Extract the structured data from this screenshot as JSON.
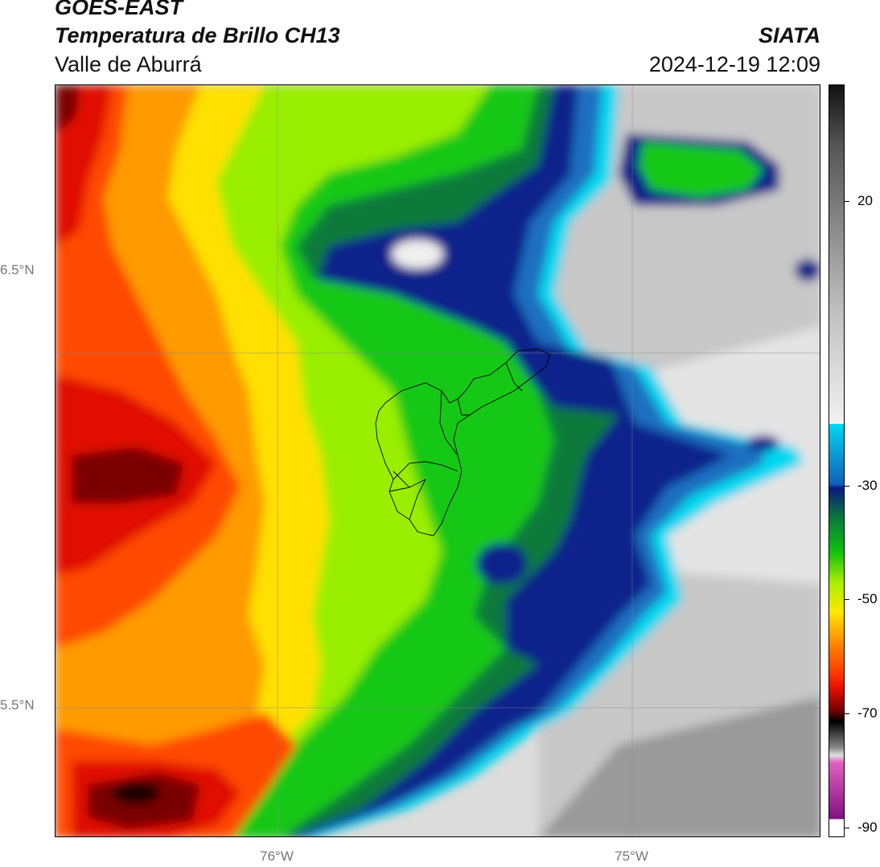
{
  "header": {
    "satellite": "GOES-EAST",
    "product": "Temperatura de Brillo CH13",
    "region": "Valle de Aburrá",
    "agency": "SIATA",
    "datetime": "2024-12-19 12:09"
  },
  "axes": {
    "lat_labels": [
      "6.5°N",
      "5.5°N"
    ],
    "lon_labels": [
      "76°W",
      "75°W"
    ]
  },
  "colorbar": {
    "ticks": [
      "20",
      "-30",
      "-50",
      "-70",
      "-90"
    ],
    "colors": {
      "warm_max": "#111111",
      "gray_light": "#e8e8e8",
      "cyan": "#00d8f0",
      "blue": "#1060b8",
      "navy": "#0a1a80",
      "green_dark": "#0a7a3a",
      "green": "#10c010",
      "lime": "#a8ee00",
      "yellow": "#ffe800",
      "orange": "#ff8a00",
      "red": "#e81000",
      "dark_red": "#7a0000",
      "magenta": "#c040b0"
    }
  },
  "map_colors": {
    "gray_dark": "#8a8a8a",
    "gray_mid": "#b8b8b8",
    "gray_light": "#e6e6e6",
    "cyan": "#00d8f0",
    "blue": "#1a70c0",
    "navy": "#08208a",
    "green_dark": "#0a7a3a",
    "green": "#14c814",
    "lime": "#9aee00",
    "yellow": "#ffe000",
    "orange": "#ff9a00",
    "orange_red": "#ff4a00",
    "red": "#e01000",
    "dark_red": "#7a0000",
    "black": "#1a0000"
  }
}
